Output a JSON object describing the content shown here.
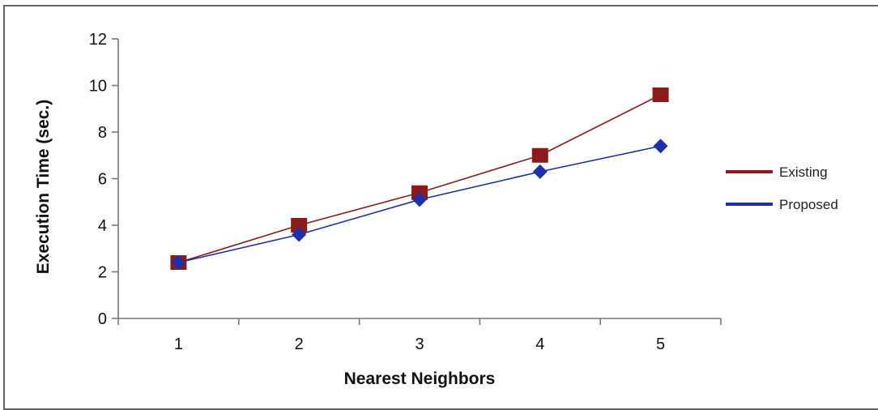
{
  "chart_data": {
    "type": "line",
    "title": "",
    "xlabel": "Nearest Neighbors",
    "ylabel": "Execution Time (sec.)",
    "x": [
      1,
      2,
      3,
      4,
      5
    ],
    "ylim": [
      0,
      12
    ],
    "yticks": [
      0,
      2,
      4,
      6,
      8,
      10,
      12
    ],
    "grid": false,
    "legend_position": "right",
    "series": [
      {
        "name": "Existing",
        "values": [
          2.4,
          4.0,
          5.4,
          7.0,
          9.6
        ],
        "color": "#8b1a1a",
        "marker": "square"
      },
      {
        "name": "Proposed",
        "values": [
          2.4,
          3.6,
          5.1,
          6.3,
          7.4
        ],
        "color": "#1f2fa8",
        "marker": "diamond"
      }
    ]
  }
}
